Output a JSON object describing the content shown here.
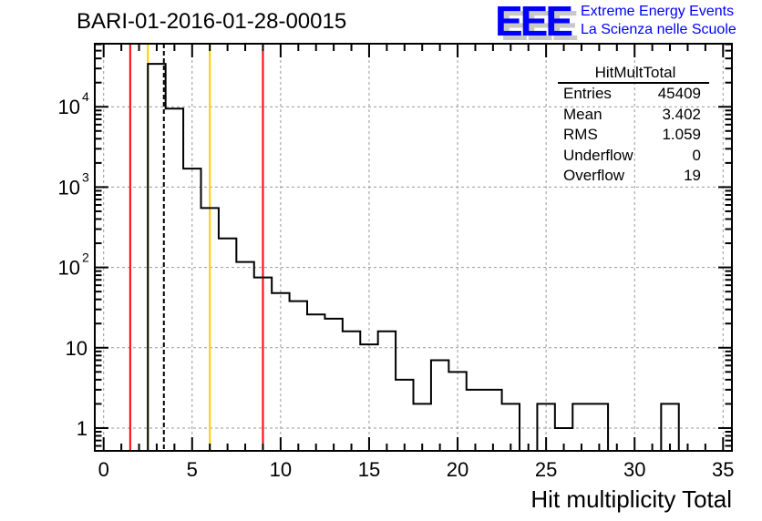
{
  "title": "BARI-01-2016-01-28-00015",
  "logo": {
    "mark": "EEE",
    "line1": "Extreme Energy Events",
    "line2": "La Scienza nelle Scuole"
  },
  "stats": {
    "name": "HitMultTotal",
    "rows": [
      {
        "label": "Entries",
        "value": "45409"
      },
      {
        "label": "Mean",
        "value": "3.402"
      },
      {
        "label": "RMS",
        "value": "1.059"
      },
      {
        "label": "Underflow",
        "value": "0"
      },
      {
        "label": "Overflow",
        "value": "19"
      }
    ]
  },
  "chart_data": {
    "type": "bar",
    "histogram": true,
    "xlabel": "Hit multiplicity Total",
    "ylabel": "",
    "xlim": [
      -0.5,
      35.5
    ],
    "ylim": [
      0.52,
      61000
    ],
    "yscale": "log",
    "grid": true,
    "x_ticks": [
      "0",
      "5",
      "10",
      "15",
      "20",
      "25",
      "30",
      "35"
    ],
    "y_ticks": [
      {
        "v": 1,
        "label": "1"
      },
      {
        "v": 10,
        "label": "10"
      },
      {
        "v": 100,
        "label": "10",
        "exp": "2"
      },
      {
        "v": 1000,
        "label": "10",
        "exp": "3"
      },
      {
        "v": 10000,
        "label": "10",
        "exp": "4"
      }
    ],
    "bin_centers": [
      3,
      4,
      5,
      6,
      7,
      8,
      9,
      10,
      11,
      12,
      13,
      14,
      15,
      16,
      17,
      18,
      19,
      20,
      21,
      22,
      23,
      24,
      25,
      26,
      27,
      28,
      29,
      30,
      31,
      32
    ],
    "values": [
      34200,
      9500,
      1700,
      550,
      230,
      117,
      75,
      48,
      38,
      26,
      23,
      16,
      11,
      16,
      4,
      2,
      7,
      5,
      3,
      3,
      2,
      0,
      2,
      1,
      2,
      2,
      0,
      0,
      0,
      2
    ],
    "vlines": [
      {
        "x": 1.5,
        "color": "#ff0000",
        "style": "solid"
      },
      {
        "x": 9.0,
        "color": "#ff0000",
        "style": "solid"
      },
      {
        "x": 2.5,
        "color": "#ffcc00",
        "style": "solid"
      },
      {
        "x": 6.0,
        "color": "#ffcc00",
        "style": "solid"
      },
      {
        "x": 3.402,
        "color": "#000000",
        "style": "dashed"
      }
    ]
  }
}
